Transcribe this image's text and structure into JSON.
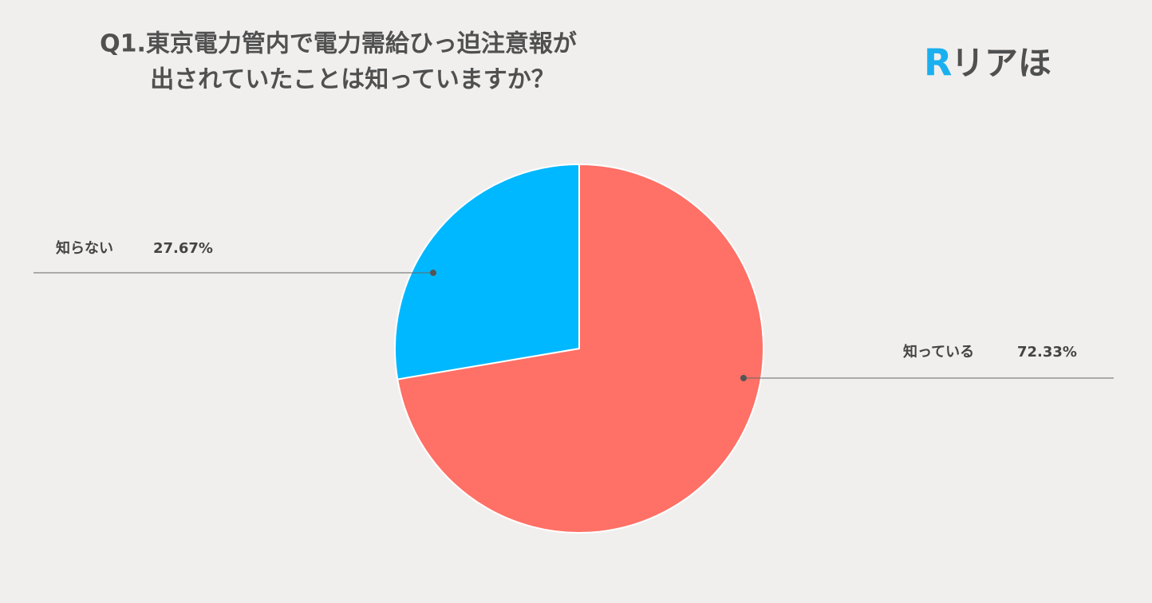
{
  "chart_data": {
    "type": "pie",
    "title": [
      "Q1.東京電力管内で電力需給ひっ迫注意報が",
      "出されていたことは知っていますか？"
    ],
    "logo_mark": "R",
    "logo_text": "リアほ",
    "categories": [
      "知っている",
      "知らない"
    ],
    "values": [
      72.33,
      27.67
    ],
    "value_labels": [
      "72.33%",
      "27.67%"
    ],
    "colors": [
      "#ff7066",
      "#00b8ff"
    ]
  }
}
